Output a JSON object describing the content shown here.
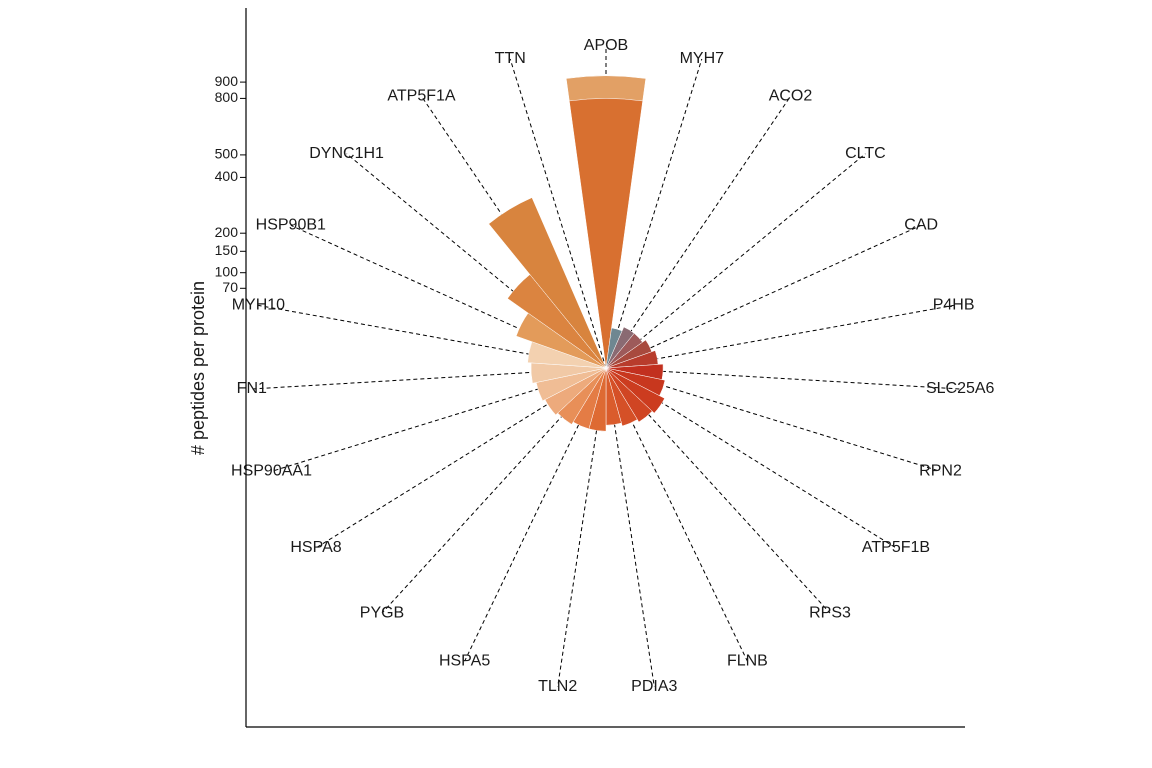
{
  "chart_data": {
    "type": "bar",
    "subtype": "polar-bar",
    "title": "",
    "xlabel": "",
    "ylabel": "# peptides per protein",
    "yscale": "sqrt",
    "yticks": [
      70,
      100,
      150,
      200,
      400,
      500,
      800,
      900
    ],
    "ylim": [
      0,
      1000
    ],
    "grid": false,
    "legend": "none",
    "categories": [
      "APOB",
      "MYH7",
      "ACO2",
      "CLTC",
      "CAD",
      "P4HB",
      "SLC25A6",
      "RPN2",
      "ATP5F1B",
      "RPS3",
      "FLNB",
      "PDIA3",
      "TLN2",
      "HSPA5",
      "PYGB",
      "HSPA8",
      "HSP90AA1",
      "FN1",
      "MYH10",
      "HSP90B1",
      "DYNC1H1",
      "ATP5F1A",
      "TTN"
    ],
    "values": [
      940,
      18,
      22,
      22,
      26,
      30,
      36,
      40,
      48,
      44,
      40,
      36,
      44,
      44,
      48,
      52,
      56,
      62,
      68,
      100,
      160,
      380,
      0
    ],
    "inner_values": [
      800,
      0,
      0,
      0,
      0,
      0,
      0,
      0,
      0,
      0,
      0,
      0,
      0,
      0,
      0,
      0,
      0,
      0,
      0,
      0,
      0,
      0,
      0
    ],
    "colors": [
      "#e2a065",
      "#6f8791",
      "#8a6a72",
      "#9d5a5a",
      "#a84a3e",
      "#b83c2c",
      "#c2301f",
      "#c8371e",
      "#cc3c1f",
      "#d04523",
      "#d55027",
      "#da5c2c",
      "#de6a33",
      "#e47c45",
      "#e88f58",
      "#edaa7c",
      "#f0bd95",
      "#f1c9a6",
      "#f3d1b0",
      "#e39b5a",
      "#db8440",
      "#d8843e",
      "#d87a2e"
    ],
    "inner_color": "#d87030"
  }
}
